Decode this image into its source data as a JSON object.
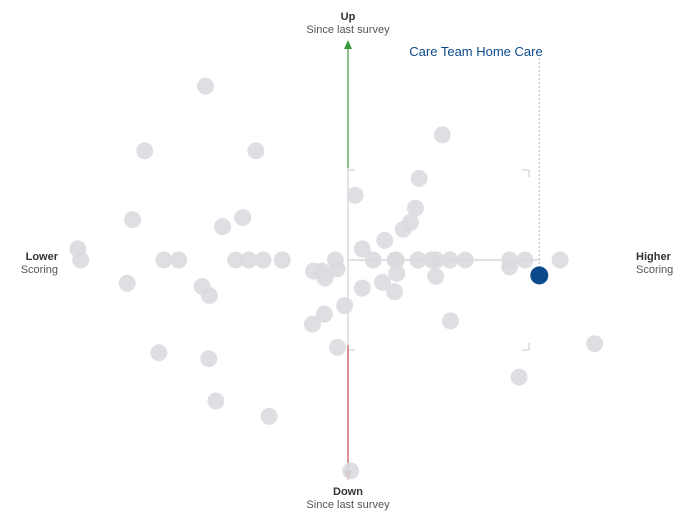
{
  "chart_data": {
    "type": "scatter",
    "axis_labels": {
      "up": {
        "title": "Up",
        "subtitle": "Since last survey"
      },
      "down": {
        "title": "Down",
        "subtitle": "Since last survey"
      },
      "left": {
        "title": "Lower",
        "subtitle": "Scoring"
      },
      "right": {
        "title": "Higher",
        "subtitle": "Scoring"
      }
    },
    "xlim": [
      -4.9,
      4.9
    ],
    "ylim": [
      -4.05,
      4.05
    ],
    "highlight": {
      "name": "Care Team Home Care",
      "x": 3.49,
      "y": -0.29,
      "color": "#0d4a8c"
    },
    "colors": {
      "point": "#d9dcdf",
      "axis_neutral": "#cfcfcf",
      "up_arrow": "#3c9a3c",
      "down_arrow": "#c24a4a",
      "lower_axis": "#cc4444",
      "higher_axis": "#55aa55",
      "highlight_guide": "#bbbbbb"
    },
    "points": [
      [
        -2.6,
        3.28
      ],
      [
        -3.71,
        2.06
      ],
      [
        -1.68,
        2.06
      ],
      [
        1.72,
        2.36
      ],
      [
        0.13,
        1.22
      ],
      [
        1.3,
        1.54
      ],
      [
        -3.93,
        0.76
      ],
      [
        -2.29,
        0.63
      ],
      [
        -1.92,
        0.8
      ],
      [
        1.23,
        0.98
      ],
      [
        1.14,
        0.71
      ],
      [
        1.01,
        0.58
      ],
      [
        0.67,
        0.37
      ],
      [
        0.26,
        0.21
      ],
      [
        -4.93,
        0.21
      ],
      [
        -4.88,
        0.0
      ],
      [
        -3.36,
        0.0
      ],
      [
        -3.09,
        0.0
      ],
      [
        -2.05,
        0.0
      ],
      [
        -1.81,
        0.0
      ],
      [
        -1.55,
        0.0
      ],
      [
        -1.2,
        0.0
      ],
      [
        -0.23,
        0.0
      ],
      [
        0.46,
        0.0
      ],
      [
        0.86,
        0.0
      ],
      [
        0.88,
        0.0
      ],
      [
        1.28,
        0.0
      ],
      [
        1.53,
        0.0
      ],
      [
        1.61,
        0.0
      ],
      [
        1.86,
        0.0
      ],
      [
        2.14,
        0.0
      ],
      [
        2.95,
        0.0
      ],
      [
        3.23,
        0.0
      ],
      [
        3.87,
        0.0
      ],
      [
        2.95,
        -0.13
      ],
      [
        -0.63,
        -0.21
      ],
      [
        -0.48,
        -0.21
      ],
      [
        -0.2,
        -0.17
      ],
      [
        0.89,
        -0.25
      ],
      [
        1.6,
        -0.31
      ],
      [
        -0.42,
        -0.34
      ],
      [
        -4.03,
        -0.44
      ],
      [
        -2.66,
        -0.5
      ],
      [
        -2.53,
        -0.67
      ],
      [
        0.26,
        -0.53
      ],
      [
        0.63,
        -0.42
      ],
      [
        0.85,
        -0.6
      ],
      [
        -0.06,
        -0.86
      ],
      [
        -0.43,
        -1.02
      ],
      [
        -0.65,
        -1.21
      ],
      [
        1.87,
        -1.15
      ],
      [
        -0.19,
        -1.65
      ],
      [
        -3.45,
        -1.75
      ],
      [
        -2.54,
        -1.86
      ],
      [
        4.5,
        -1.58
      ],
      [
        3.12,
        -2.21
      ],
      [
        -2.41,
        -2.66
      ],
      [
        -1.44,
        -2.95
      ],
      [
        0.05,
        -3.98
      ]
    ]
  }
}
